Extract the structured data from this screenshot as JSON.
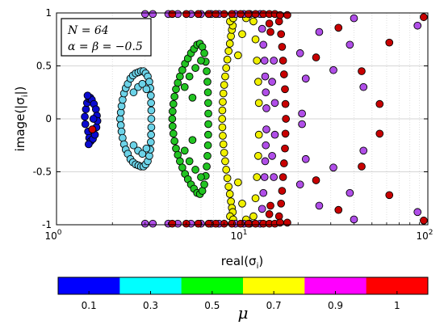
{
  "chart_data": {
    "type": "scatter",
    "xscale": "log",
    "xlim": [
      1,
      100
    ],
    "ylim": [
      -1,
      1
    ],
    "grid": true,
    "xlabel": "real(σi)",
    "ylabel": "image(|σi|)",
    "xticks": [
      {
        "value": 1,
        "label": "10",
        "exp": "0"
      },
      {
        "value": 10,
        "label": "10",
        "exp": "1"
      },
      {
        "value": 100,
        "label": "10",
        "exp": "2"
      }
    ],
    "yticks": [
      {
        "value": 1,
        "label": "1"
      },
      {
        "value": 0.5,
        "label": "0.5"
      },
      {
        "value": 0,
        "label": "0"
      },
      {
        "value": -0.5,
        "label": "-0.5"
      },
      {
        "value": -1,
        "label": "-1"
      }
    ],
    "annotation": {
      "line1": "N = 64",
      "line2": "α = β = −0.5"
    },
    "colorbar": {
      "title": "μ",
      "segments": [
        {
          "label": "0.1",
          "color": "#0000ff"
        },
        {
          "label": "0.3",
          "color": "#00ffff"
        },
        {
          "label": "0.5",
          "color": "#00ff00"
        },
        {
          "label": "0.7",
          "color": "#ffff00"
        },
        {
          "label": "0.9",
          "color": "#ff00ff"
        },
        {
          "label": "1",
          "color": "#ff0000"
        }
      ]
    },
    "series": [
      {
        "mu": "0.1",
        "color": "#0a0ad0",
        "points": [
          [
            1.42,
            0.02
          ],
          [
            1.43,
            -0.05
          ],
          [
            1.44,
            0.09
          ],
          [
            1.46,
            0.15
          ],
          [
            1.48,
            -0.12
          ],
          [
            1.5,
            0.19
          ],
          [
            1.5,
            -0.18
          ],
          [
            1.52,
            0.2
          ],
          [
            1.53,
            -0.21
          ],
          [
            1.55,
            0.18
          ],
          [
            1.57,
            -0.19
          ],
          [
            1.59,
            0.14
          ],
          [
            1.61,
            -0.15
          ],
          [
            1.63,
            0.09
          ],
          [
            1.64,
            -0.08
          ],
          [
            1.65,
            0.03
          ],
          [
            1.66,
            -0.02
          ],
          [
            1.56,
            -0.1
          ],
          [
            1.58,
            0.0
          ],
          [
            1.47,
            0.22
          ],
          [
            1.49,
            -0.24
          ]
        ]
      },
      {
        "mu": "0.1 (red center)",
        "color": "#d00000",
        "points": [
          [
            1.56,
            -0.1
          ]
        ]
      },
      {
        "mu": "0.3",
        "color": "#6cd3e8",
        "points": [
          [
            2.2,
            0.0
          ],
          [
            2.22,
            0.06
          ],
          [
            2.22,
            -0.06
          ],
          [
            2.24,
            0.12
          ],
          [
            2.24,
            -0.12
          ],
          [
            2.27,
            0.18
          ],
          [
            2.27,
            -0.18
          ],
          [
            2.31,
            0.24
          ],
          [
            2.31,
            -0.24
          ],
          [
            2.36,
            0.29
          ],
          [
            2.36,
            -0.29
          ],
          [
            2.42,
            0.33
          ],
          [
            2.42,
            -0.33
          ],
          [
            2.5,
            0.38
          ],
          [
            2.5,
            -0.38
          ],
          [
            2.58,
            0.41
          ],
          [
            2.58,
            -0.41
          ],
          [
            2.67,
            0.43
          ],
          [
            2.67,
            -0.43
          ],
          [
            2.76,
            0.44
          ],
          [
            2.76,
            -0.44
          ],
          [
            2.85,
            0.45
          ],
          [
            2.85,
            -0.45
          ],
          [
            2.94,
            0.45
          ],
          [
            2.94,
            -0.45
          ],
          [
            3.02,
            0.43
          ],
          [
            3.02,
            -0.43
          ],
          [
            3.1,
            0.4
          ],
          [
            3.1,
            -0.4
          ],
          [
            3.16,
            0.35
          ],
          [
            3.16,
            -0.35
          ],
          [
            3.2,
            0.29
          ],
          [
            3.2,
            -0.29
          ],
          [
            3.22,
            0.22
          ],
          [
            3.22,
            -0.22
          ],
          [
            3.23,
            0.15
          ],
          [
            3.23,
            -0.15
          ],
          [
            3.24,
            0.08
          ],
          [
            3.24,
            -0.08
          ],
          [
            3.24,
            0.0
          ],
          [
            2.6,
            0.25
          ],
          [
            2.6,
            -0.25
          ],
          [
            2.75,
            0.3
          ],
          [
            2.75,
            -0.3
          ],
          [
            2.9,
            0.33
          ],
          [
            2.9,
            -0.33
          ],
          [
            3.05,
            0.28
          ],
          [
            3.05,
            -0.28
          ]
        ]
      },
      {
        "mu": "0.5",
        "color": "#22c422",
        "points": [
          [
            4.2,
            0.0
          ],
          [
            4.22,
            0.07
          ],
          [
            4.22,
            -0.07
          ],
          [
            4.26,
            0.14
          ],
          [
            4.26,
            -0.14
          ],
          [
            4.32,
            0.21
          ],
          [
            4.32,
            -0.21
          ],
          [
            4.4,
            0.28
          ],
          [
            4.4,
            -0.28
          ],
          [
            4.5,
            0.34
          ],
          [
            4.5,
            -0.34
          ],
          [
            4.62,
            0.4
          ],
          [
            4.62,
            -0.4
          ],
          [
            4.76,
            0.46
          ],
          [
            4.76,
            -0.46
          ],
          [
            4.92,
            0.52
          ],
          [
            4.92,
            -0.52
          ],
          [
            5.1,
            0.57
          ],
          [
            5.1,
            -0.57
          ],
          [
            5.3,
            0.62
          ],
          [
            5.3,
            -0.62
          ],
          [
            5.5,
            0.66
          ],
          [
            5.5,
            -0.66
          ],
          [
            5.72,
            0.7
          ],
          [
            5.72,
            -0.7
          ],
          [
            5.92,
            0.71
          ],
          [
            5.92,
            -0.71
          ],
          [
            6.1,
            0.68
          ],
          [
            6.1,
            -0.68
          ],
          [
            6.25,
            0.62
          ],
          [
            6.25,
            -0.62
          ],
          [
            6.36,
            0.54
          ],
          [
            6.36,
            -0.54
          ],
          [
            6.44,
            0.45
          ],
          [
            6.44,
            -0.45
          ],
          [
            6.5,
            0.35
          ],
          [
            6.5,
            -0.35
          ],
          [
            6.54,
            0.25
          ],
          [
            6.54,
            -0.25
          ],
          [
            6.56,
            0.15
          ],
          [
            6.56,
            -0.15
          ],
          [
            6.57,
            0.05
          ],
          [
            6.57,
            -0.05
          ],
          [
            4.9,
            0.3
          ],
          [
            4.9,
            -0.3
          ],
          [
            5.2,
            0.4
          ],
          [
            5.2,
            -0.4
          ],
          [
            5.6,
            0.48
          ],
          [
            5.6,
            -0.48
          ],
          [
            6.0,
            0.55
          ],
          [
            6.0,
            -0.55
          ],
          [
            5.4,
            0.2
          ],
          [
            5.4,
            -0.2
          ]
        ]
      },
      {
        "mu": "0.7",
        "color": "#f0f000",
        "points": [
          [
            7.8,
            0.0
          ],
          [
            7.82,
            0.08
          ],
          [
            7.82,
            -0.08
          ],
          [
            7.86,
            0.16
          ],
          [
            7.86,
            -0.16
          ],
          [
            7.92,
            0.24
          ],
          [
            7.92,
            -0.24
          ],
          [
            8.0,
            0.32
          ],
          [
            8.0,
            -0.32
          ],
          [
            8.1,
            0.4
          ],
          [
            8.1,
            -0.4
          ],
          [
            8.2,
            0.48
          ],
          [
            8.2,
            -0.48
          ],
          [
            8.32,
            0.56
          ],
          [
            8.32,
            -0.56
          ],
          [
            8.45,
            0.64
          ],
          [
            8.45,
            -0.64
          ],
          [
            8.58,
            0.71
          ],
          [
            8.58,
            -0.71
          ],
          [
            8.7,
            0.78
          ],
          [
            8.7,
            -0.78
          ],
          [
            8.8,
            0.84
          ],
          [
            8.8,
            -0.84
          ],
          [
            8.9,
            0.88
          ],
          [
            8.9,
            -0.88
          ],
          [
            8.6,
            0.92
          ],
          [
            8.6,
            -0.92
          ],
          [
            8.95,
            0.95
          ],
          [
            8.95,
            -0.95
          ],
          [
            11.5,
            0.92
          ],
          [
            11.5,
            -0.92
          ],
          [
            11.8,
            0.75
          ],
          [
            11.8,
            -0.75
          ],
          [
            12.0,
            0.55
          ],
          [
            12.0,
            -0.55
          ],
          [
            12.2,
            0.35
          ],
          [
            12.2,
            -0.35
          ],
          [
            12.3,
            0.15
          ],
          [
            12.3,
            -0.15
          ],
          [
            10.0,
            0.8
          ],
          [
            10.0,
            -0.8
          ],
          [
            10.5,
            0.95
          ],
          [
            10.5,
            -0.95
          ],
          [
            9.5,
            0.6
          ],
          [
            9.5,
            -0.6
          ]
        ]
      },
      {
        "mu": "0.9",
        "color": "#b04ee8",
        "points": [
          [
            3.0,
            0.99
          ],
          [
            3.3,
            0.99
          ],
          [
            4.0,
            0.99
          ],
          [
            4.5,
            0.99
          ],
          [
            5.3,
            0.99
          ],
          [
            6.0,
            0.99
          ],
          [
            6.8,
            0.99
          ],
          [
            7.5,
            0.99
          ],
          [
            3.0,
            -0.99
          ],
          [
            3.3,
            -0.99
          ],
          [
            4.0,
            -0.99
          ],
          [
            4.5,
            -0.99
          ],
          [
            5.3,
            -0.99
          ],
          [
            6.0,
            -0.99
          ],
          [
            6.8,
            -0.99
          ],
          [
            7.5,
            -0.99
          ],
          [
            9.2,
            0.99
          ],
          [
            10.2,
            0.99
          ],
          [
            11.0,
            0.99
          ],
          [
            12.5,
            0.99
          ],
          [
            9.2,
            -0.99
          ],
          [
            10.2,
            -0.99
          ],
          [
            11.0,
            -0.99
          ],
          [
            12.5,
            -0.99
          ],
          [
            12.8,
            0.85
          ],
          [
            12.8,
            -0.85
          ],
          [
            13.0,
            0.7
          ],
          [
            13.0,
            -0.7
          ],
          [
            13.2,
            0.55
          ],
          [
            13.2,
            -0.55
          ],
          [
            13.3,
            0.4
          ],
          [
            13.3,
            -0.4
          ],
          [
            13.4,
            0.25
          ],
          [
            13.4,
            -0.25
          ],
          [
            13.5,
            0.1
          ],
          [
            13.5,
            -0.1
          ],
          [
            14.5,
            0.35
          ],
          [
            14.5,
            -0.35
          ],
          [
            15.0,
            0.15
          ],
          [
            15.0,
            -0.15
          ],
          [
            14.8,
            0.55
          ],
          [
            14.8,
            -0.55
          ],
          [
            20.5,
            0.62
          ],
          [
            20.5,
            -0.62
          ],
          [
            21.0,
            0.05
          ],
          [
            21.0,
            -0.05
          ],
          [
            22.0,
            0.38
          ],
          [
            22.0,
            -0.38
          ],
          [
            26.0,
            -0.82
          ],
          [
            26.0,
            0.82
          ],
          [
            31.0,
            0.46
          ],
          [
            31.0,
            -0.46
          ],
          [
            38.0,
            0.7
          ],
          [
            38.0,
            -0.7
          ],
          [
            40.0,
            0.95
          ],
          [
            40.0,
            -0.95
          ],
          [
            45.0,
            0.3
          ],
          [
            45.0,
            -0.3
          ],
          [
            88.0,
            -0.88
          ],
          [
            88.0,
            0.88
          ]
        ]
      },
      {
        "mu": "1",
        "color": "#c80000",
        "points": [
          [
            4.2,
            0.99
          ],
          [
            5.0,
            0.99
          ],
          [
            5.8,
            0.99
          ],
          [
            6.6,
            0.99
          ],
          [
            7.2,
            0.99
          ],
          [
            8.0,
            0.99
          ],
          [
            8.8,
            0.99
          ],
          [
            4.2,
            -0.99
          ],
          [
            5.0,
            -0.99
          ],
          [
            5.8,
            -0.99
          ],
          [
            6.6,
            -0.99
          ],
          [
            7.2,
            -0.99
          ],
          [
            8.0,
            -0.99
          ],
          [
            8.8,
            -0.99
          ],
          [
            9.8,
            0.99
          ],
          [
            10.8,
            0.99
          ],
          [
            11.8,
            0.99
          ],
          [
            13.0,
            0.99
          ],
          [
            14.0,
            0.99
          ],
          [
            15.0,
            0.99
          ],
          [
            9.8,
            -0.99
          ],
          [
            10.8,
            -0.99
          ],
          [
            11.8,
            -0.99
          ],
          [
            13.0,
            -0.99
          ],
          [
            14.0,
            -0.99
          ],
          [
            15.0,
            -0.99
          ],
          [
            15.8,
            0.92
          ],
          [
            15.8,
            -0.92
          ],
          [
            16.2,
            0.8
          ],
          [
            16.2,
            -0.8
          ],
          [
            16.4,
            0.68
          ],
          [
            16.4,
            -0.68
          ],
          [
            16.6,
            0.55
          ],
          [
            16.6,
            -0.55
          ],
          [
            16.8,
            0.42
          ],
          [
            16.8,
            -0.42
          ],
          [
            17.0,
            0.28
          ],
          [
            17.0,
            -0.28
          ],
          [
            17.1,
            0.14
          ],
          [
            17.1,
            -0.14
          ],
          [
            17.2,
            0.0
          ],
          [
            14.0,
            0.9
          ],
          [
            14.0,
            -0.9
          ],
          [
            14.2,
            0.82
          ],
          [
            14.2,
            -0.82
          ],
          [
            25.0,
            0.58
          ],
          [
            25.0,
            -0.58
          ],
          [
            33.0,
            0.86
          ],
          [
            33.0,
            -0.86
          ],
          [
            44.0,
            0.45
          ],
          [
            44.0,
            -0.45
          ],
          [
            55.0,
            0.14
          ],
          [
            55.0,
            -0.14
          ],
          [
            62.0,
            0.72
          ],
          [
            62.0,
            -0.72
          ],
          [
            95.0,
            0.96
          ],
          [
            95.0,
            -0.96
          ],
          [
            17.5,
            0.98
          ],
          [
            17.5,
            -0.98
          ],
          [
            16.0,
            0.98
          ],
          [
            16.0,
            -0.98
          ]
        ]
      }
    ]
  }
}
